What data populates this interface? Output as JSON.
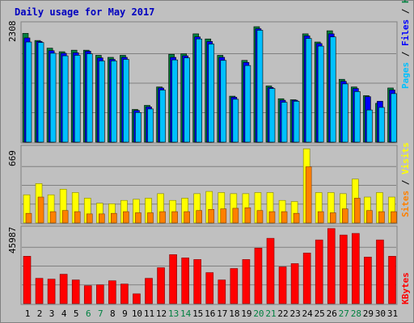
{
  "title": "Daily usage for May 2017",
  "legend": {
    "top": [
      {
        "label": "Pages",
        "color": "#00c0ff"
      },
      {
        "label": " / ",
        "color": "#000000"
      },
      {
        "label": "Files",
        "color": "#0000ff"
      },
      {
        "label": " / ",
        "color": "#000000"
      },
      {
        "label": "Hits",
        "color": "#008040"
      }
    ],
    "middle": [
      {
        "label": "Sites",
        "color": "#ff8000"
      },
      {
        "label": " / ",
        "color": "#000000"
      },
      {
        "label": "Visits",
        "color": "#ffff00"
      }
    ],
    "bottom": [
      {
        "label": "KBytes",
        "color": "#ff0000"
      }
    ]
  },
  "colors": {
    "hits": "#008040",
    "files": "#0000ff",
    "pages": "#00c0ff",
    "visits": "#ffff00",
    "sites": "#ff8000",
    "kbytes": "#ff0000",
    "weekend": "#008040",
    "weekday": "#000000",
    "panel": "#c0c0c0"
  },
  "chart_data": [
    {
      "type": "bar",
      "title": "Daily usage for May 2017",
      "categories": [
        "1",
        "2",
        "3",
        "4",
        "5",
        "6",
        "7",
        "8",
        "9",
        "10",
        "11",
        "12",
        "13",
        "14",
        "15",
        "16",
        "17",
        "18",
        "19",
        "20",
        "21",
        "22",
        "23",
        "24",
        "25",
        "26",
        "27",
        "28",
        "29",
        "30",
        "31"
      ],
      "weekend_days": [
        "6",
        "7",
        "13",
        "14",
        "20",
        "21",
        "27",
        "28"
      ],
      "ymax_label": "2308",
      "ylim": [
        0,
        2308
      ],
      "series": [
        {
          "name": "Hits",
          "values": [
            2130,
            1990,
            1840,
            1770,
            1800,
            1800,
            1700,
            1660,
            1700,
            640,
            720,
            1080,
            1720,
            1730,
            2120,
            2020,
            1700,
            900,
            1600,
            2260,
            1100,
            850,
            830,
            2120,
            1960,
            2180,
            1230,
            1080,
            910,
            760,
            1060
          ]
        },
        {
          "name": "Files",
          "values": [
            2040,
            1970,
            1790,
            1740,
            1750,
            1780,
            1650,
            1620,
            1660,
            620,
            690,
            1060,
            1660,
            1690,
            2060,
            1970,
            1660,
            880,
            1560,
            2220,
            1070,
            820,
            820,
            2080,
            1930,
            2120,
            1190,
            1050,
            890,
            800,
            1020
          ]
        },
        {
          "name": "Pages",
          "values": [
            1960,
            1950,
            1740,
            1690,
            1700,
            1730,
            1590,
            1590,
            1620,
            580,
            650,
            1020,
            1610,
            1650,
            2020,
            1920,
            1600,
            840,
            1500,
            2190,
            1050,
            780,
            800,
            2030,
            1880,
            2060,
            1140,
            990,
            630,
            680,
            950
          ]
        }
      ]
    },
    {
      "type": "bar",
      "ymax_label": "669",
      "ylim": [
        0,
        669
      ],
      "series": [
        {
          "name": "Visits",
          "values": [
            250,
            350,
            250,
            300,
            270,
            220,
            175,
            170,
            200,
            210,
            220,
            260,
            200,
            220,
            260,
            280,
            270,
            260,
            260,
            270,
            270,
            200,
            190,
            660,
            270,
            270,
            260,
            390,
            230,
            270,
            230
          ]
        },
        {
          "name": "Sites",
          "values": [
            85,
            230,
            100,
            110,
            100,
            80,
            80,
            85,
            100,
            90,
            90,
            100,
            100,
            100,
            110,
            120,
            125,
            130,
            135,
            110,
            100,
            100,
            85,
            500,
            100,
            90,
            125,
            220,
            110,
            100,
            100
          ]
        }
      ]
    },
    {
      "type": "bar",
      "ymax_label": "45987",
      "ylim": [
        0,
        45987
      ],
      "series": [
        {
          "name": "KBytes",
          "values": [
            29000,
            15500,
            15000,
            18000,
            14500,
            11000,
            11500,
            14000,
            12000,
            6000,
            15500,
            22000,
            30000,
            28000,
            27000,
            19000,
            14500,
            21500,
            27000,
            34000,
            40000,
            22500,
            24500,
            31000,
            39000,
            46000,
            42000,
            43000,
            28500,
            39000,
            29000
          ]
        }
      ]
    }
  ]
}
